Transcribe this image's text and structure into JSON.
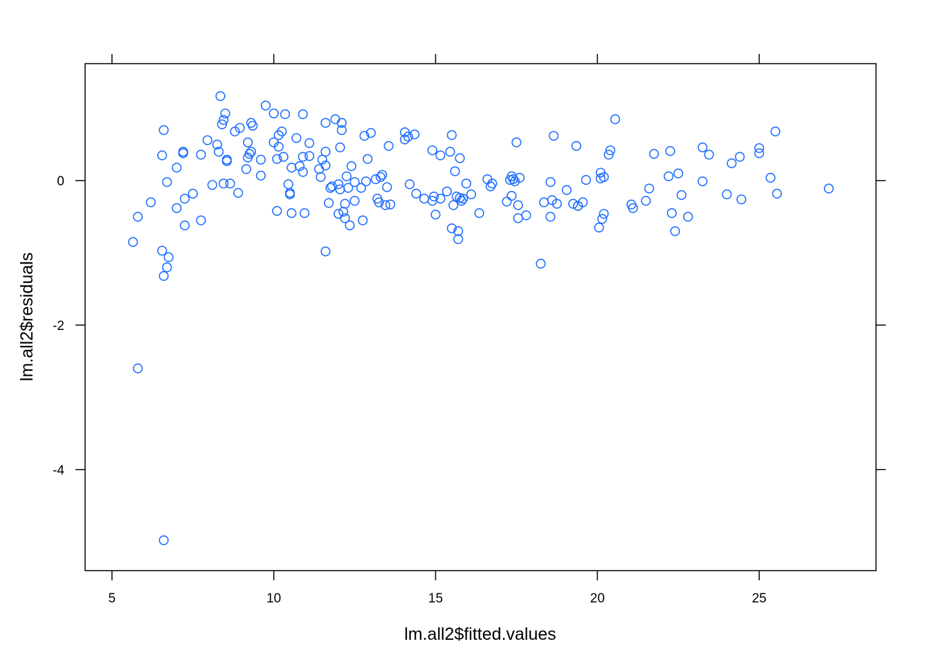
{
  "chart_data": {
    "type": "scatter",
    "title": "",
    "xlabel": "lm.all2$fitted.values",
    "ylabel": "lm.all2$residuals",
    "xlim": [
      4.17,
      28.61
    ],
    "ylim": [
      -5.4,
      1.62
    ],
    "x_ticks": [
      5,
      10,
      15,
      20,
      25
    ],
    "x_tick_labels": [
      "5",
      "10",
      "15",
      "20",
      "25"
    ],
    "y_ticks": [
      0,
      -2,
      -4
    ],
    "y_tick_labels": [
      "0",
      "-2",
      "-4"
    ],
    "grid": false,
    "point_color": "#1f6fff",
    "points": [
      [
        5.65,
        -0.85
      ],
      [
        5.8,
        -0.5
      ],
      [
        5.8,
        -2.6
      ],
      [
        6.2,
        -0.3
      ],
      [
        6.55,
        0.35
      ],
      [
        6.6,
        0.7
      ],
      [
        6.55,
        -0.97
      ],
      [
        6.6,
        -1.32
      ],
      [
        6.7,
        -1.2
      ],
      [
        6.75,
        -1.06
      ],
      [
        6.7,
        -0.02
      ],
      [
        6.6,
        -4.98
      ],
      [
        7.0,
        0.18
      ],
      [
        7.0,
        -0.38
      ],
      [
        7.2,
        0.38
      ],
      [
        7.2,
        0.4
      ],
      [
        7.25,
        -0.62
      ],
      [
        7.25,
        -0.25
      ],
      [
        7.5,
        -0.18
      ],
      [
        7.75,
        0.36
      ],
      [
        7.75,
        -0.55
      ],
      [
        7.95,
        0.56
      ],
      [
        8.1,
        -0.06
      ],
      [
        8.25,
        0.5
      ],
      [
        8.3,
        0.4
      ],
      [
        8.35,
        1.17
      ],
      [
        8.4,
        0.78
      ],
      [
        8.45,
        0.84
      ],
      [
        8.5,
        0.93
      ],
      [
        8.45,
        -0.04
      ],
      [
        8.55,
        0.27
      ],
      [
        8.55,
        0.29
      ],
      [
        8.65,
        -0.04
      ],
      [
        8.8,
        0.68
      ],
      [
        8.9,
        -0.17
      ],
      [
        8.95,
        0.73
      ],
      [
        9.15,
        0.16
      ],
      [
        9.2,
        0.32
      ],
      [
        9.2,
        0.53
      ],
      [
        9.25,
        0.37
      ],
      [
        9.3,
        0.4
      ],
      [
        9.3,
        0.8
      ],
      [
        9.35,
        0.76
      ],
      [
        9.6,
        0.29
      ],
      [
        9.6,
        0.07
      ],
      [
        9.75,
        1.04
      ],
      [
        10.0,
        0.53
      ],
      [
        10.0,
        0.93
      ],
      [
        10.1,
        0.3
      ],
      [
        10.1,
        -0.42
      ],
      [
        10.15,
        0.47
      ],
      [
        10.15,
        0.63
      ],
      [
        10.25,
        0.68
      ],
      [
        10.3,
        0.33
      ],
      [
        10.35,
        0.92
      ],
      [
        10.45,
        -0.05
      ],
      [
        10.5,
        -0.17
      ],
      [
        10.5,
        -0.19
      ],
      [
        10.55,
        0.18
      ],
      [
        10.55,
        -0.45
      ],
      [
        10.7,
        0.59
      ],
      [
        10.8,
        0.2
      ],
      [
        10.9,
        0.12
      ],
      [
        10.9,
        0.33
      ],
      [
        10.9,
        0.92
      ],
      [
        10.95,
        -0.45
      ],
      [
        11.1,
        0.52
      ],
      [
        11.1,
        0.34
      ],
      [
        11.4,
        0.16
      ],
      [
        11.45,
        0.05
      ],
      [
        11.5,
        0.29
      ],
      [
        11.6,
        0.4
      ],
      [
        11.6,
        0.21
      ],
      [
        11.6,
        0.8
      ],
      [
        11.6,
        -0.98
      ],
      [
        11.7,
        -0.31
      ],
      [
        11.75,
        -0.1
      ],
      [
        11.8,
        -0.08
      ],
      [
        11.9,
        0.85
      ],
      [
        12.0,
        -0.05
      ],
      [
        12.0,
        -0.46
      ],
      [
        12.05,
        -0.12
      ],
      [
        12.05,
        0.46
      ],
      [
        12.1,
        0.8
      ],
      [
        12.1,
        0.7
      ],
      [
        12.15,
        -0.43
      ],
      [
        12.2,
        -0.32
      ],
      [
        12.2,
        -0.52
      ],
      [
        12.25,
        0.06
      ],
      [
        12.3,
        -0.1
      ],
      [
        12.35,
        -0.62
      ],
      [
        12.4,
        0.2
      ],
      [
        12.5,
        -0.28
      ],
      [
        12.5,
        -0.02
      ],
      [
        12.7,
        -0.1
      ],
      [
        12.75,
        -0.55
      ],
      [
        12.8,
        0.62
      ],
      [
        12.85,
        -0.01
      ],
      [
        12.9,
        0.3
      ],
      [
        13.0,
        0.66
      ],
      [
        13.15,
        0.02
      ],
      [
        13.2,
        -0.25
      ],
      [
        13.25,
        -0.3
      ],
      [
        13.3,
        0.05
      ],
      [
        13.35,
        0.08
      ],
      [
        13.45,
        -0.34
      ],
      [
        13.5,
        -0.09
      ],
      [
        13.55,
        0.48
      ],
      [
        13.6,
        -0.33
      ],
      [
        14.05,
        0.57
      ],
      [
        14.05,
        0.67
      ],
      [
        14.15,
        0.61
      ],
      [
        14.2,
        -0.05
      ],
      [
        14.35,
        0.64
      ],
      [
        14.4,
        -0.18
      ],
      [
        14.65,
        -0.25
      ],
      [
        14.9,
        0.42
      ],
      [
        14.9,
        -0.28
      ],
      [
        14.95,
        -0.22
      ],
      [
        15.0,
        -0.47
      ],
      [
        15.15,
        0.35
      ],
      [
        15.15,
        -0.25
      ],
      [
        15.35,
        -0.15
      ],
      [
        15.45,
        0.4
      ],
      [
        15.5,
        0.63
      ],
      [
        15.5,
        -0.66
      ],
      [
        15.55,
        -0.34
      ],
      [
        15.6,
        0.13
      ],
      [
        15.65,
        -0.22
      ],
      [
        15.7,
        -0.7
      ],
      [
        15.7,
        -0.81
      ],
      [
        15.75,
        0.31
      ],
      [
        15.75,
        -0.24
      ],
      [
        15.8,
        -0.28
      ],
      [
        15.85,
        -0.25
      ],
      [
        15.95,
        -0.04
      ],
      [
        16.1,
        -0.19
      ],
      [
        16.35,
        -0.45
      ],
      [
        16.6,
        0.02
      ],
      [
        16.7,
        -0.08
      ],
      [
        16.75,
        -0.04
      ],
      [
        17.2,
        -0.29
      ],
      [
        17.3,
        0.01
      ],
      [
        17.35,
        0.06
      ],
      [
        17.35,
        -0.21
      ],
      [
        17.4,
        0.02
      ],
      [
        17.45,
        -0.01
      ],
      [
        17.5,
        0.53
      ],
      [
        17.55,
        -0.52
      ],
      [
        17.55,
        -0.34
      ],
      [
        17.6,
        0.04
      ],
      [
        17.8,
        -0.48
      ],
      [
        18.25,
        -1.15
      ],
      [
        18.35,
        -0.3
      ],
      [
        18.55,
        -0.5
      ],
      [
        18.55,
        -0.02
      ],
      [
        18.6,
        -0.27
      ],
      [
        18.65,
        0.62
      ],
      [
        18.75,
        -0.32
      ],
      [
        19.05,
        -0.13
      ],
      [
        19.25,
        -0.32
      ],
      [
        19.35,
        0.48
      ],
      [
        19.4,
        -0.35
      ],
      [
        19.4,
        -0.35
      ],
      [
        19.55,
        -0.3
      ],
      [
        19.65,
        0.01
      ],
      [
        20.05,
        -0.65
      ],
      [
        20.1,
        0.03
      ],
      [
        20.1,
        0.11
      ],
      [
        20.15,
        -0.53
      ],
      [
        20.2,
        0.05
      ],
      [
        20.2,
        -0.46
      ],
      [
        20.35,
        0.36
      ],
      [
        20.4,
        0.42
      ],
      [
        20.55,
        0.85
      ],
      [
        21.05,
        -0.33
      ],
      [
        21.1,
        -0.38
      ],
      [
        21.5,
        -0.28
      ],
      [
        21.6,
        -0.11
      ],
      [
        21.75,
        0.37
      ],
      [
        22.2,
        0.06
      ],
      [
        22.25,
        0.41
      ],
      [
        22.3,
        -0.45
      ],
      [
        22.4,
        -0.7
      ],
      [
        22.5,
        0.1
      ],
      [
        22.6,
        -0.2
      ],
      [
        22.8,
        -0.5
      ],
      [
        23.25,
        0.46
      ],
      [
        23.25,
        -0.01
      ],
      [
        23.45,
        0.36
      ],
      [
        24.0,
        -0.19
      ],
      [
        24.15,
        0.24
      ],
      [
        24.4,
        0.33
      ],
      [
        24.45,
        -0.26
      ],
      [
        25.0,
        0.45
      ],
      [
        25.0,
        0.38
      ],
      [
        25.35,
        0.04
      ],
      [
        25.5,
        0.68
      ],
      [
        25.55,
        -0.18
      ],
      [
        27.15,
        -0.11
      ]
    ]
  }
}
